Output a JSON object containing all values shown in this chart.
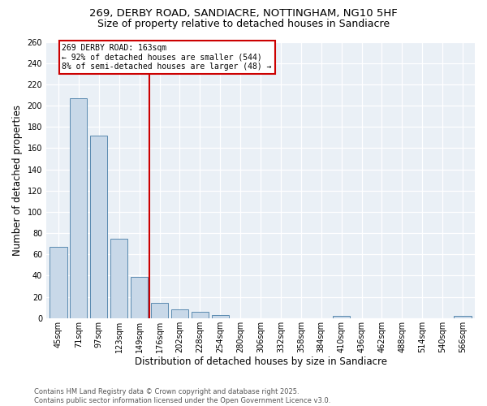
{
  "title_line1": "269, DERBY ROAD, SANDIACRE, NOTTINGHAM, NG10 5HF",
  "title_line2": "Size of property relative to detached houses in Sandiacre",
  "xlabel": "Distribution of detached houses by size in Sandiacre",
  "ylabel": "Number of detached properties",
  "bins": [
    "45sqm",
    "71sqm",
    "97sqm",
    "123sqm",
    "149sqm",
    "176sqm",
    "202sqm",
    "228sqm",
    "254sqm",
    "280sqm",
    "306sqm",
    "332sqm",
    "358sqm",
    "384sqm",
    "410sqm",
    "436sqm",
    "462sqm",
    "488sqm",
    "514sqm",
    "540sqm",
    "566sqm"
  ],
  "values": [
    67,
    207,
    172,
    75,
    39,
    14,
    8,
    6,
    3,
    0,
    0,
    0,
    0,
    0,
    2,
    0,
    0,
    0,
    0,
    0,
    2
  ],
  "bar_color": "#c8d8e8",
  "bar_edge_color": "#5a8ab0",
  "vline_x": 4.5,
  "vline_color": "#cc0000",
  "annotation_text": "269 DERBY ROAD: 163sqm\n← 92% of detached houses are smaller (544)\n8% of semi-detached houses are larger (48) →",
  "annotation_box_edge_color": "#cc0000",
  "annotation_box_facecolor": "white",
  "ylim_max": 260,
  "ytick_step": 20,
  "bg_color": "#eaf0f6",
  "footer": "Contains HM Land Registry data © Crown copyright and database right 2025.\nContains public sector information licensed under the Open Government Licence v3.0.",
  "title_fontsize": 9.5,
  "axis_label_fontsize": 8.5,
  "tick_fontsize": 7,
  "annot_fontsize": 7,
  "footer_fontsize": 6
}
